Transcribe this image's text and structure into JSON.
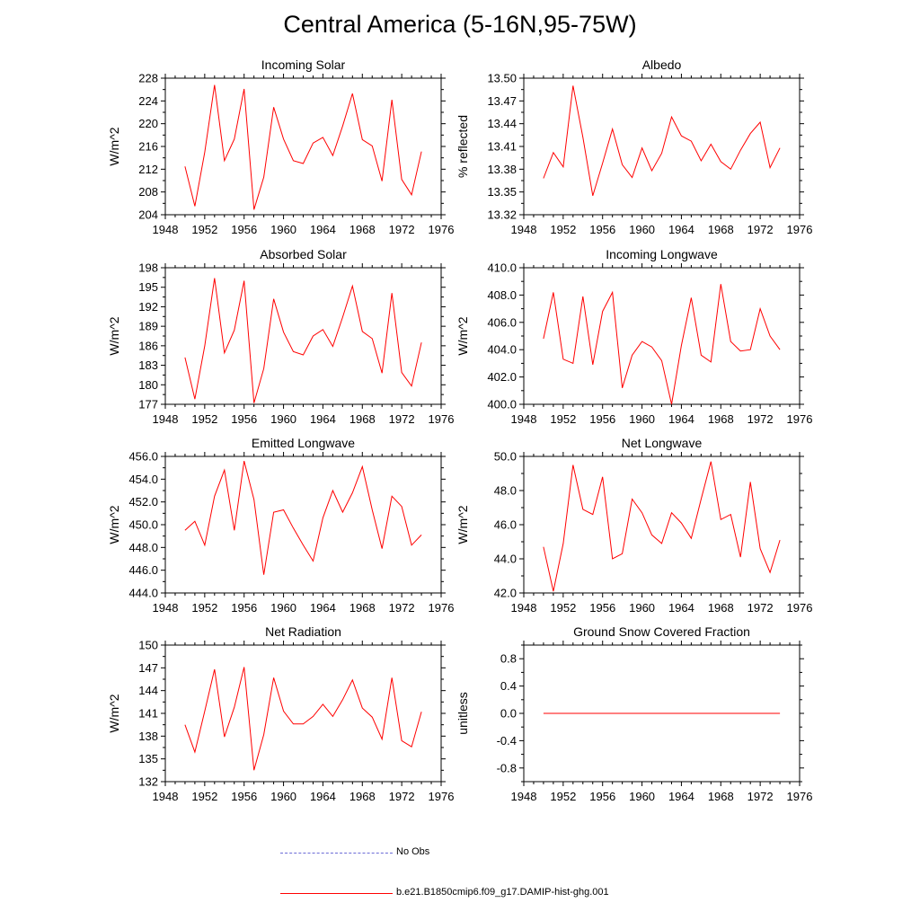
{
  "title": "Central America (5-16N,95-75W)",
  "legend": [
    {
      "label": "No Obs",
      "color": "#6b6bd6",
      "style": "dashed"
    },
    {
      "label": "b.e21.B1850cmip6.f09_g17.DAMIP-hist-ghg.001",
      "color": "#ff0000",
      "style": "solid"
    }
  ],
  "chart_data": [
    {
      "type": "line",
      "title": "Incoming Solar",
      "ylabel": "W/m^2",
      "xlim": [
        1948,
        1976
      ],
      "ylim": [
        204,
        228
      ],
      "x_ticks": [
        "1948",
        "1952",
        "1956",
        "1960",
        "1964",
        "1968",
        "1972",
        "1976"
      ],
      "y_ticks": [
        "204",
        "208",
        "212",
        "216",
        "220",
        "224",
        "228"
      ],
      "x": [
        1950,
        1951,
        1952,
        1953,
        1954,
        1955,
        1956,
        1957,
        1958,
        1959,
        1960,
        1961,
        1962,
        1963,
        1964,
        1965,
        1966,
        1967,
        1968,
        1969,
        1970,
        1971,
        1972,
        1973,
        1974
      ],
      "series": [
        {
          "name": "b.e21.B1850cmip6.f09_g17.DAMIP-hist-ghg.001",
          "color": "#ff0000",
          "values": [
            212.5,
            205.5,
            215.0,
            226.8,
            213.5,
            217.3,
            226.1,
            204.9,
            210.6,
            222.9,
            217.3,
            213.5,
            213.0,
            216.6,
            217.6,
            214.4,
            219.6,
            225.3,
            217.2,
            216.1,
            209.9,
            224.2,
            210.2,
            207.5,
            215.1
          ]
        }
      ]
    },
    {
      "type": "line",
      "title": "Albedo",
      "ylabel": "% reflected",
      "xlim": [
        1948,
        1976
      ],
      "ylim": [
        13.32,
        13.5
      ],
      "x_ticks": [
        "1948",
        "1952",
        "1956",
        "1960",
        "1964",
        "1968",
        "1972",
        "1976"
      ],
      "y_ticks": [
        "13.32",
        "13.35",
        "13.38",
        "13.41",
        "13.44",
        "13.47",
        "13.50"
      ],
      "x": [
        1950,
        1951,
        1952,
        1953,
        1954,
        1955,
        1956,
        1957,
        1958,
        1959,
        1960,
        1961,
        1962,
        1963,
        1964,
        1965,
        1966,
        1967,
        1968,
        1969,
        1970,
        1971,
        1972,
        1973,
        1974
      ],
      "series": [
        {
          "name": "b.e21.B1850cmip6.f09_g17.DAMIP-hist-ghg.001",
          "color": "#ff0000",
          "values": [
            13.368,
            13.402,
            13.383,
            13.49,
            13.422,
            13.345,
            13.388,
            13.433,
            13.386,
            13.369,
            13.408,
            13.378,
            13.401,
            13.449,
            13.424,
            13.417,
            13.391,
            13.413,
            13.39,
            13.38,
            13.405,
            13.427,
            13.442,
            13.382,
            13.408
          ]
        }
      ]
    },
    {
      "type": "line",
      "title": "Absorbed Solar",
      "ylabel": "W/m^2",
      "xlim": [
        1948,
        1976
      ],
      "ylim": [
        177,
        198
      ],
      "x_ticks": [
        "1948",
        "1952",
        "1956",
        "1960",
        "1964",
        "1968",
        "1972",
        "1976"
      ],
      "y_ticks": [
        "177",
        "180",
        "183",
        "186",
        "189",
        "192",
        "195",
        "198"
      ],
      "x": [
        1950,
        1951,
        1952,
        1953,
        1954,
        1955,
        1956,
        1957,
        1958,
        1959,
        1960,
        1961,
        1962,
        1963,
        1964,
        1965,
        1966,
        1967,
        1968,
        1969,
        1970,
        1971,
        1972,
        1973,
        1974
      ],
      "series": [
        {
          "name": "b.e21.B1850cmip6.f09_g17.DAMIP-hist-ghg.001",
          "color": "#ff0000",
          "values": [
            184.2,
            177.8,
            186.0,
            196.4,
            184.9,
            188.4,
            196.0,
            177.2,
            182.5,
            193.2,
            188.1,
            185.1,
            184.6,
            187.5,
            188.5,
            185.9,
            190.4,
            195.2,
            188.2,
            187.1,
            181.8,
            194.1,
            181.9,
            179.8,
            186.5
          ]
        }
      ]
    },
    {
      "type": "line",
      "title": "Incoming Longwave",
      "ylabel": "W/m^2",
      "xlim": [
        1948,
        1976
      ],
      "ylim": [
        400.0,
        410.0
      ],
      "x_ticks": [
        "1948",
        "1952",
        "1956",
        "1960",
        "1964",
        "1968",
        "1972",
        "1976"
      ],
      "y_ticks": [
        "400.0",
        "402.0",
        "404.0",
        "406.0",
        "408.0",
        "410.0"
      ],
      "x": [
        1950,
        1951,
        1952,
        1953,
        1954,
        1955,
        1956,
        1957,
        1958,
        1959,
        1960,
        1961,
        1962,
        1963,
        1964,
        1965,
        1966,
        1967,
        1968,
        1969,
        1970,
        1971,
        1972,
        1973,
        1974
      ],
      "series": [
        {
          "name": "b.e21.B1850cmip6.f09_g17.DAMIP-hist-ghg.001",
          "color": "#ff0000",
          "values": [
            404.8,
            408.2,
            403.3,
            403.0,
            407.9,
            402.9,
            406.8,
            408.2,
            401.2,
            403.6,
            404.6,
            404.2,
            403.2,
            400.0,
            404.3,
            407.8,
            403.6,
            403.1,
            408.8,
            404.6,
            403.9,
            404.0,
            407.0,
            405.0,
            404.0
          ]
        }
      ]
    },
    {
      "type": "line",
      "title": "Emitted Longwave",
      "ylabel": "W/m^2",
      "xlim": [
        1948,
        1976
      ],
      "ylim": [
        444.0,
        456.0
      ],
      "x_ticks": [
        "1948",
        "1952",
        "1956",
        "1960",
        "1964",
        "1968",
        "1972",
        "1976"
      ],
      "y_ticks": [
        "444.0",
        "446.0",
        "448.0",
        "450.0",
        "452.0",
        "454.0",
        "456.0"
      ],
      "x": [
        1950,
        1951,
        1952,
        1953,
        1954,
        1955,
        1956,
        1957,
        1958,
        1959,
        1960,
        1961,
        1962,
        1963,
        1964,
        1965,
        1966,
        1967,
        1968,
        1969,
        1970,
        1971,
        1972,
        1973,
        1974
      ],
      "series": [
        {
          "name": "b.e21.B1850cmip6.f09_g17.DAMIP-hist-ghg.001",
          "color": "#ff0000",
          "values": [
            449.5,
            450.3,
            448.2,
            452.5,
            454.8,
            449.5,
            455.6,
            452.2,
            445.6,
            451.1,
            451.3,
            449.7,
            448.2,
            446.8,
            450.6,
            453.0,
            451.1,
            452.8,
            455.1,
            451.3,
            447.9,
            452.5,
            451.6,
            448.2,
            449.1
          ]
        }
      ]
    },
    {
      "type": "line",
      "title": "Net Longwave",
      "ylabel": "W/m^2",
      "xlim": [
        1948,
        1976
      ],
      "ylim": [
        42.0,
        50.0
      ],
      "x_ticks": [
        "1948",
        "1952",
        "1956",
        "1960",
        "1964",
        "1968",
        "1972",
        "1976"
      ],
      "y_ticks": [
        "42.0",
        "44.0",
        "46.0",
        "48.0",
        "50.0"
      ],
      "x": [
        1950,
        1951,
        1952,
        1953,
        1954,
        1955,
        1956,
        1957,
        1958,
        1959,
        1960,
        1961,
        1962,
        1963,
        1964,
        1965,
        1966,
        1967,
        1968,
        1969,
        1970,
        1971,
        1972,
        1973,
        1974
      ],
      "series": [
        {
          "name": "b.e21.B1850cmip6.f09_g17.DAMIP-hist-ghg.001",
          "color": "#ff0000",
          "values": [
            44.7,
            42.1,
            44.9,
            49.5,
            46.9,
            46.6,
            48.8,
            44.0,
            44.3,
            47.5,
            46.7,
            45.4,
            44.9,
            46.7,
            46.1,
            45.2,
            47.5,
            49.7,
            46.3,
            46.6,
            44.1,
            48.5,
            44.6,
            43.2,
            45.1
          ]
        }
      ]
    },
    {
      "type": "line",
      "title": "Net Radiation",
      "ylabel": "W/m^2",
      "xlim": [
        1948,
        1976
      ],
      "ylim": [
        132,
        150
      ],
      "x_ticks": [
        "1948",
        "1952",
        "1956",
        "1960",
        "1964",
        "1968",
        "1972",
        "1976"
      ],
      "y_ticks": [
        "132",
        "135",
        "138",
        "141",
        "144",
        "147",
        "150"
      ],
      "x": [
        1950,
        1951,
        1952,
        1953,
        1954,
        1955,
        1956,
        1957,
        1958,
        1959,
        1960,
        1961,
        1962,
        1963,
        1964,
        1965,
        1966,
        1967,
        1968,
        1969,
        1970,
        1971,
        1972,
        1973,
        1974
      ],
      "series": [
        {
          "name": "b.e21.B1850cmip6.f09_g17.DAMIP-hist-ghg.001",
          "color": "#ff0000",
          "values": [
            139.5,
            135.9,
            141.3,
            146.8,
            137.9,
            141.8,
            147.1,
            133.5,
            138.2,
            145.7,
            141.3,
            139.6,
            139.6,
            140.6,
            142.2,
            140.6,
            142.8,
            145.4,
            141.7,
            140.5,
            137.6,
            145.7,
            137.4,
            136.6,
            141.2
          ]
        }
      ]
    },
    {
      "type": "line",
      "title": "Ground Snow Covered Fraction",
      "ylabel": "unitless",
      "xlim": [
        1948,
        1976
      ],
      "ylim": [
        -1.0,
        1.0
      ],
      "x_ticks": [
        "1948",
        "1952",
        "1956",
        "1960",
        "1964",
        "1968",
        "1972",
        "1976"
      ],
      "y_ticks": [
        "-0.8",
        "-0.4",
        "0.0",
        "0.4",
        "0.8"
      ],
      "x": [
        1950,
        1951,
        1952,
        1953,
        1954,
        1955,
        1956,
        1957,
        1958,
        1959,
        1960,
        1961,
        1962,
        1963,
        1964,
        1965,
        1966,
        1967,
        1968,
        1969,
        1970,
        1971,
        1972,
        1973,
        1974
      ],
      "series": [
        {
          "name": "b.e21.B1850cmip6.f09_g17.DAMIP-hist-ghg.001",
          "color": "#ff0000",
          "values": [
            0,
            0,
            0,
            0,
            0,
            0,
            0,
            0,
            0,
            0,
            0,
            0,
            0,
            0,
            0,
            0,
            0,
            0,
            0,
            0,
            0,
            0,
            0,
            0,
            0
          ]
        }
      ]
    }
  ]
}
